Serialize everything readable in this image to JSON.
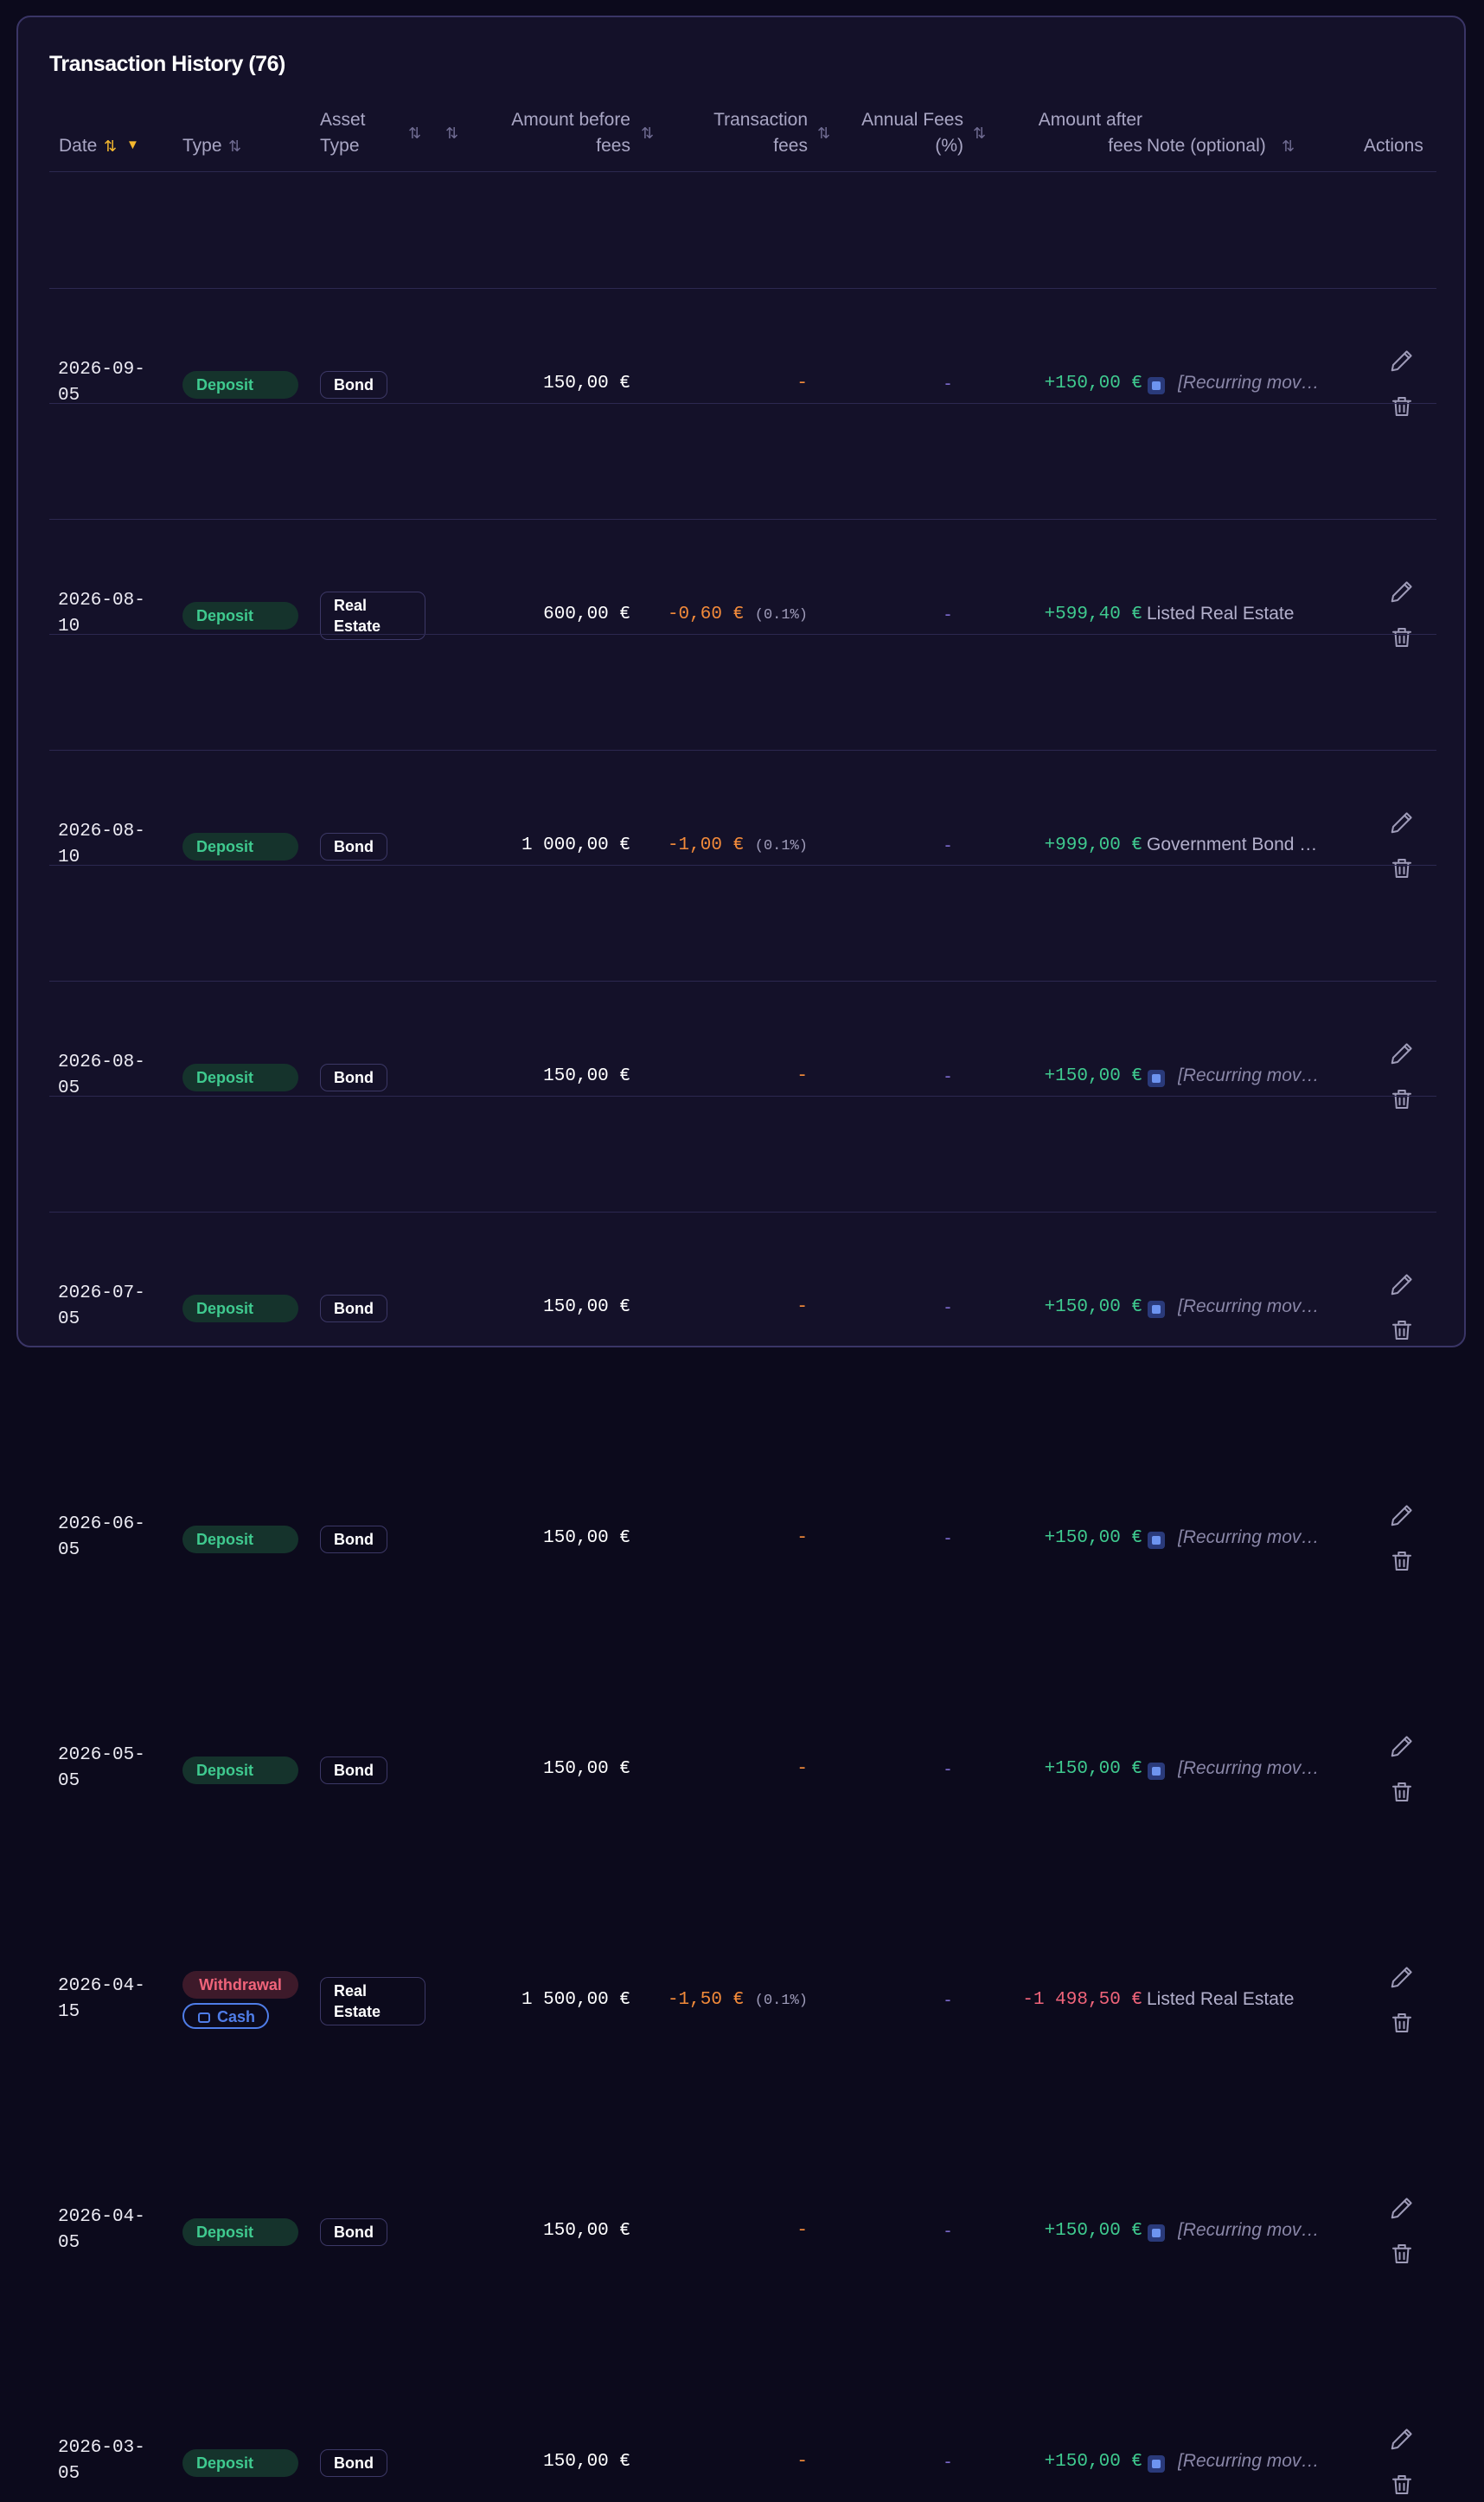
{
  "title": "Transaction History (76)",
  "headers": {
    "date": "Date",
    "type": "Type",
    "asset_type_1": "Asset",
    "asset_type_2": "Type",
    "amount_before_1": "Amount before",
    "amount_before_2": "fees",
    "transaction_fees_1": "Transaction",
    "transaction_fees_2": "fees",
    "annual_fees_1": "Annual Fees",
    "annual_fees_2": "(%)",
    "amount_after_1": "Amount after",
    "amount_after_2": "fees",
    "note": "Note (optional)",
    "actions": "Actions"
  },
  "icons": {
    "sort": "sort-icon",
    "sort_desc": "sort-desc-icon",
    "edit": "edit-icon",
    "delete": "trash-icon",
    "recurring": "recurring-icon",
    "wallet": "wallet-icon"
  },
  "rows": [
    {
      "date_1": "2026-09-",
      "date_2": "05",
      "type": "Deposit",
      "asset": "Bond",
      "amount": "150,00 €",
      "fee": "-",
      "fee_pct": "",
      "annual": "-",
      "after": "+150,00 €",
      "note": "[Recurring mov…",
      "recurring": true
    },
    {
      "date_1": "2026-08-",
      "date_2": "10",
      "type": "Deposit",
      "asset_1": "Real",
      "asset_2": "Estate",
      "amount": "600,00 €",
      "fee": "-0,60 €",
      "fee_pct": "(0.1%)",
      "annual": "-",
      "after": "+599,40 €",
      "note": "Listed Real Estate",
      "recurring": false
    },
    {
      "date_1": "2026-08-",
      "date_2": "10",
      "type": "Deposit",
      "asset": "Bond",
      "amount": "1 000,00 €",
      "fee": "-1,00 €",
      "fee_pct": "(0.1%)",
      "annual": "-",
      "after": "+999,00 €",
      "note": "Government Bond …",
      "recurring": false
    },
    {
      "date_1": "2026-08-",
      "date_2": "05",
      "type": "Deposit",
      "asset": "Bond",
      "amount": "150,00 €",
      "fee": "-",
      "fee_pct": "",
      "annual": "-",
      "after": "+150,00 €",
      "note": "[Recurring mov…",
      "recurring": true
    },
    {
      "date_1": "2026-07-",
      "date_2": "05",
      "type": "Deposit",
      "asset": "Bond",
      "amount": "150,00 €",
      "fee": "-",
      "fee_pct": "",
      "annual": "-",
      "after": "+150,00 €",
      "note": "[Recurring mov…",
      "recurring": true
    },
    {
      "date_1": "2026-06-",
      "date_2": "05",
      "type": "Deposit",
      "asset": "Bond",
      "amount": "150,00 €",
      "fee": "-",
      "fee_pct": "",
      "annual": "-",
      "after": "+150,00 €",
      "note": "[Recurring mov…",
      "recurring": true
    },
    {
      "date_1": "2026-05-",
      "date_2": "05",
      "type": "Deposit",
      "asset": "Bond",
      "amount": "150,00 €",
      "fee": "-",
      "fee_pct": "",
      "annual": "-",
      "after": "+150,00 €",
      "note": "[Recurring mov…",
      "recurring": true
    },
    {
      "date_1": "2026-04-",
      "date_2": "15",
      "type": "Withdrawal",
      "type_sub": "Cash",
      "asset_1": "Real",
      "asset_2": "Estate",
      "amount": "1 500,00 €",
      "fee": "-1,50 €",
      "fee_pct": "(0.1%)",
      "annual": "-",
      "after": "-1 498,50 €",
      "note": "Listed Real Estate",
      "recurring": false
    },
    {
      "date_1": "2026-04-",
      "date_2": "05",
      "type": "Deposit",
      "asset": "Bond",
      "amount": "150,00 €",
      "fee": "-",
      "fee_pct": "",
      "annual": "-",
      "after": "+150,00 €",
      "note": "[Recurring mov…",
      "recurring": true
    },
    {
      "date_1": "2026-03-",
      "date_2": "05",
      "type": "Deposit",
      "asset": "Bond",
      "amount": "150,00 €",
      "fee": "-",
      "fee_pct": "",
      "annual": "-",
      "after": "+150,00 €",
      "note": "[Recurring mov…",
      "recurring": true
    }
  ]
}
